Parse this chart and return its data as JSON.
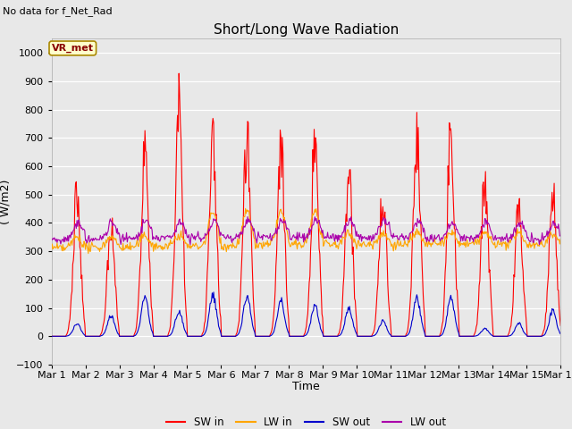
{
  "title": "Short/Long Wave Radiation",
  "subtitle": "No data for f_Net_Rad",
  "xlabel": "Time",
  "ylabel": "( W/m2)",
  "ylim": [
    -100,
    1050
  ],
  "xlim": [
    0,
    15
  ],
  "xtick_labels": [
    "Mar 1",
    "Mar 2",
    "Mar 3",
    "Mar 4",
    "Mar 5",
    "Mar 6",
    "Mar 7",
    "Mar 8",
    "Mar 9",
    "Mar 10",
    "Mar 11",
    "Mar 12",
    "Mar 13",
    "Mar 14",
    "Mar 15",
    "Mar 16"
  ],
  "colors": {
    "SW_in": "#FF0000",
    "LW_in": "#FFA500",
    "SW_out": "#0000CC",
    "LW_out": "#AA00AA"
  },
  "legend_labels": [
    "SW in",
    "LW in",
    "SW out",
    "LW out"
  ],
  "box_label": "VR_met",
  "fig_bg": "#E8E8E8",
  "plot_bg": "#E8E8E8"
}
